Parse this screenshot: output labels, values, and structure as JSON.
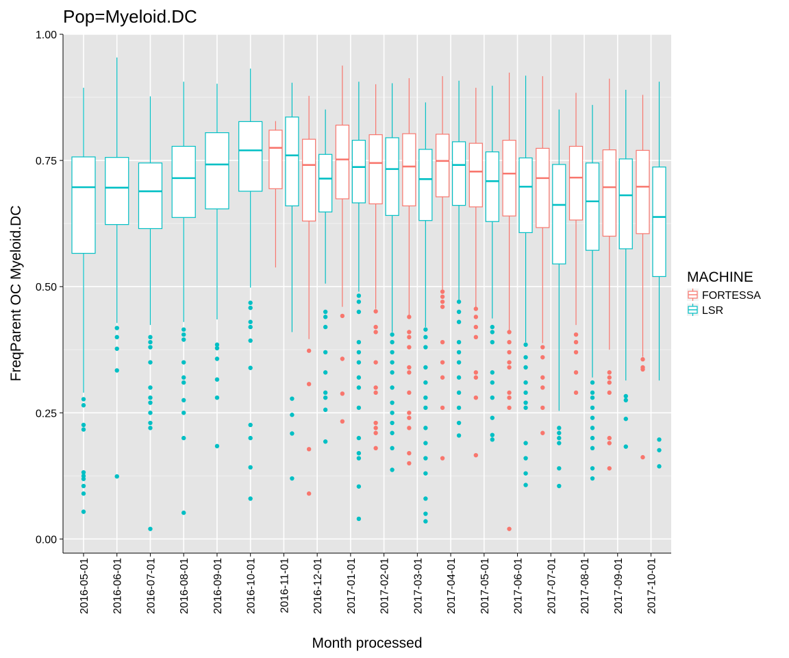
{
  "chart_data": {
    "type": "boxplot",
    "title": "Pop=Myeloid.DC",
    "xlabel": "Month processed",
    "ylabel": "FreqParent OC  Myeloid.DC",
    "ylim": [
      -0.028,
      1.0
    ],
    "yticks": [
      0.0,
      0.25,
      0.5,
      0.75,
      1.0
    ],
    "ytick_labels": [
      "0.00",
      "0.25",
      "0.50",
      "0.75",
      "1.00"
    ],
    "grid": true,
    "legend": {
      "title": "MACHINE",
      "placement": "right",
      "entries": [
        {
          "name": "FORTESSA",
          "color": "#F8766D"
        },
        {
          "name": "LSR",
          "color": "#00BFC4"
        }
      ]
    },
    "categories": [
      "2016-05-01",
      "2016-06-01",
      "2016-07-01",
      "2016-08-01",
      "2016-09-01",
      "2016-10-01",
      "2016-11-01",
      "2016-12-01",
      "2017-01-01",
      "2017-02-01",
      "2017-03-01",
      "2017-04-01",
      "2017-05-01",
      "2017-06-01",
      "2017-07-01",
      "2017-08-01",
      "2017-09-01",
      "2017-10-01"
    ],
    "series": [
      {
        "name": "FORTESSA",
        "color": "#F8766D",
        "boxes": [
          null,
          null,
          null,
          null,
          null,
          null,
          {
            "whisker_low": 0.538,
            "q1": 0.694,
            "median": 0.775,
            "q3": 0.81,
            "whisker_high": 0.828,
            "outliers": []
          },
          {
            "whisker_low": 0.396,
            "q1": 0.63,
            "median": 0.741,
            "q3": 0.792,
            "whisker_high": 0.878,
            "outliers": [
              0.373,
              0.307,
              0.178,
              0.09
            ]
          },
          {
            "whisker_low": 0.46,
            "q1": 0.674,
            "median": 0.752,
            "q3": 0.82,
            "whisker_high": 0.938,
            "outliers": [
              0.442,
              0.357,
              0.288,
              0.233
            ]
          },
          {
            "whisker_low": 0.456,
            "q1": 0.664,
            "median": 0.745,
            "q3": 0.801,
            "whisker_high": 0.901,
            "outliers": [
              0.451,
              0.42,
              0.41,
              0.35,
              0.3,
              0.29,
              0.23,
              0.22,
              0.21,
              0.18
            ]
          },
          {
            "whisker_low": 0.44,
            "q1": 0.66,
            "median": 0.738,
            "q3": 0.803,
            "whisker_high": 0.913,
            "outliers": [
              0.44,
              0.41,
              0.4,
              0.38,
              0.34,
              0.33,
              0.29,
              0.25,
              0.24,
              0.22,
              0.17,
              0.15
            ]
          },
          {
            "whisker_low": 0.49,
            "q1": 0.678,
            "median": 0.749,
            "q3": 0.802,
            "whisker_high": 0.917,
            "outliers": [
              0.49,
              0.48,
              0.47,
              0.46,
              0.39,
              0.35,
              0.32,
              0.26,
              0.16
            ]
          },
          {
            "whisker_low": 0.456,
            "q1": 0.658,
            "median": 0.728,
            "q3": 0.784,
            "whisker_high": 0.894,
            "outliers": [
              0.456,
              0.44,
              0.42,
              0.4,
              0.33,
              0.32,
              0.28,
              0.166
            ]
          },
          {
            "whisker_low": 0.41,
            "q1": 0.64,
            "median": 0.724,
            "q3": 0.79,
            "whisker_high": 0.924,
            "outliers": [
              0.41,
              0.39,
              0.37,
              0.35,
              0.34,
              0.29,
              0.28,
              0.26,
              0.02
            ]
          },
          {
            "whisker_low": 0.388,
            "q1": 0.617,
            "median": 0.715,
            "q3": 0.774,
            "whisker_high": 0.917,
            "outliers": [
              0.38,
              0.36,
              0.32,
              0.3,
              0.26,
              0.21
            ]
          },
          {
            "whisker_low": 0.424,
            "q1": 0.632,
            "median": 0.716,
            "q3": 0.778,
            "whisker_high": 0.884,
            "outliers": [
              0.405,
              0.39,
              0.37,
              0.33,
              0.29
            ]
          },
          {
            "whisker_low": 0.375,
            "q1": 0.6,
            "median": 0.697,
            "q3": 0.771,
            "whisker_high": 0.912,
            "outliers": [
              0.33,
              0.32,
              0.31,
              0.29,
              0.2,
              0.19,
              0.14
            ]
          },
          {
            "whisker_low": 0.361,
            "q1": 0.605,
            "median": 0.698,
            "q3": 0.77,
            "whisker_high": 0.88,
            "outliers": [
              0.356,
              0.34,
              0.336,
              0.162
            ]
          }
        ]
      },
      {
        "name": "LSR",
        "color": "#00BFC4",
        "boxes": [
          {
            "whisker_low": 0.29,
            "q1": 0.566,
            "median": 0.697,
            "q3": 0.757,
            "whisker_high": 0.894,
            "outliers": [
              0.277,
              0.265,
              0.226,
              0.217,
              0.132,
              0.125,
              0.119,
              0.105,
              0.09,
              0.054
            ]
          },
          {
            "whisker_low": 0.428,
            "q1": 0.623,
            "median": 0.696,
            "q3": 0.756,
            "whisker_high": 0.954,
            "outliers": [
              0.418,
              0.4,
              0.377,
              0.334,
              0.124
            ]
          },
          {
            "whisker_low": 0.424,
            "q1": 0.615,
            "median": 0.689,
            "q3": 0.745,
            "whisker_high": 0.877,
            "outliers": [
              0.4,
              0.39,
              0.38,
              0.35,
              0.3,
              0.28,
              0.27,
              0.25,
              0.23,
              0.22,
              0.02
            ]
          },
          {
            "whisker_low": 0.43,
            "q1": 0.637,
            "median": 0.715,
            "q3": 0.778,
            "whisker_high": 0.906,
            "outliers": [
              0.415,
              0.405,
              0.395,
              0.35,
              0.32,
              0.31,
              0.275,
              0.25,
              0.2,
              0.052
            ]
          },
          {
            "whisker_low": 0.435,
            "q1": 0.654,
            "median": 0.742,
            "q3": 0.805,
            "whisker_high": 0.902,
            "outliers": [
              0.385,
              0.378,
              0.357,
              0.316,
              0.28,
              0.184
            ]
          },
          {
            "whisker_low": 0.498,
            "q1": 0.689,
            "median": 0.77,
            "q3": 0.827,
            "whisker_high": 0.932,
            "outliers": [
              0.468,
              0.458,
              0.43,
              0.42,
              0.393,
              0.339,
              0.226,
              0.2,
              0.142,
              0.08
            ]
          },
          {
            "whisker_low": 0.41,
            "q1": 0.66,
            "median": 0.76,
            "q3": 0.836,
            "whisker_high": 0.904,
            "outliers": [
              0.278,
              0.246,
              0.209,
              0.12
            ]
          },
          {
            "whisker_low": 0.506,
            "q1": 0.648,
            "median": 0.714,
            "q3": 0.762,
            "whisker_high": 0.851,
            "outliers": [
              0.45,
              0.44,
              0.42,
              0.37,
              0.33,
              0.29,
              0.28,
              0.256,
              0.193
            ]
          },
          {
            "whisker_low": 0.49,
            "q1": 0.666,
            "median": 0.737,
            "q3": 0.79,
            "whisker_high": 0.906,
            "outliers": [
              0.482,
              0.47,
              0.45,
              0.39,
              0.37,
              0.35,
              0.32,
              0.3,
              0.26,
              0.2,
              0.17,
              0.16,
              0.104,
              0.04
            ]
          },
          {
            "whisker_low": 0.41,
            "q1": 0.641,
            "median": 0.733,
            "q3": 0.795,
            "whisker_high": 0.903,
            "outliers": [
              0.405,
              0.39,
              0.37,
              0.35,
              0.33,
              0.3,
              0.27,
              0.25,
              0.23,
              0.21,
              0.18,
              0.137
            ]
          },
          {
            "whisker_low": 0.42,
            "q1": 0.631,
            "median": 0.713,
            "q3": 0.772,
            "whisker_high": 0.865,
            "outliers": [
              0.415,
              0.4,
              0.38,
              0.34,
              0.31,
              0.28,
              0.26,
              0.22,
              0.19,
              0.16,
              0.13,
              0.08,
              0.05,
              0.035
            ]
          },
          {
            "whisker_low": 0.473,
            "q1": 0.661,
            "median": 0.741,
            "q3": 0.787,
            "whisker_high": 0.908,
            "outliers": [
              0.47,
              0.45,
              0.43,
              0.39,
              0.37,
              0.35,
              0.32,
              0.29,
              0.26,
              0.23,
              0.205
            ]
          },
          {
            "whisker_low": 0.437,
            "q1": 0.629,
            "median": 0.709,
            "q3": 0.767,
            "whisker_high": 0.898,
            "outliers": [
              0.42,
              0.41,
              0.39,
              0.33,
              0.31,
              0.28,
              0.24,
              0.206,
              0.197
            ]
          },
          {
            "whisker_low": 0.39,
            "q1": 0.607,
            "median": 0.698,
            "q3": 0.755,
            "whisker_high": 0.918,
            "outliers": [
              0.385,
              0.36,
              0.34,
              0.31,
              0.29,
              0.27,
              0.26,
              0.19,
              0.16,
              0.13,
              0.107
            ]
          },
          {
            "whisker_low": 0.254,
            "q1": 0.545,
            "median": 0.662,
            "q3": 0.742,
            "whisker_high": 0.851,
            "outliers": [
              0.22,
              0.21,
              0.2,
              0.19,
              0.14,
              0.105
            ]
          },
          {
            "whisker_low": 0.32,
            "q1": 0.572,
            "median": 0.669,
            "q3": 0.745,
            "whisker_high": 0.86,
            "outliers": [
              0.31,
              0.29,
              0.28,
              0.26,
              0.24,
              0.22,
              0.2,
              0.18,
              0.14,
              0.12
            ]
          },
          {
            "whisker_low": 0.314,
            "q1": 0.575,
            "median": 0.681,
            "q3": 0.753,
            "whisker_high": 0.89,
            "outliers": [
              0.283,
              0.275,
              0.238,
              0.183
            ]
          },
          {
            "whisker_low": 0.314,
            "q1": 0.52,
            "median": 0.638,
            "q3": 0.737,
            "whisker_high": 0.906,
            "outliers": [
              0.197,
              0.176,
              0.144
            ]
          }
        ]
      }
    ]
  }
}
